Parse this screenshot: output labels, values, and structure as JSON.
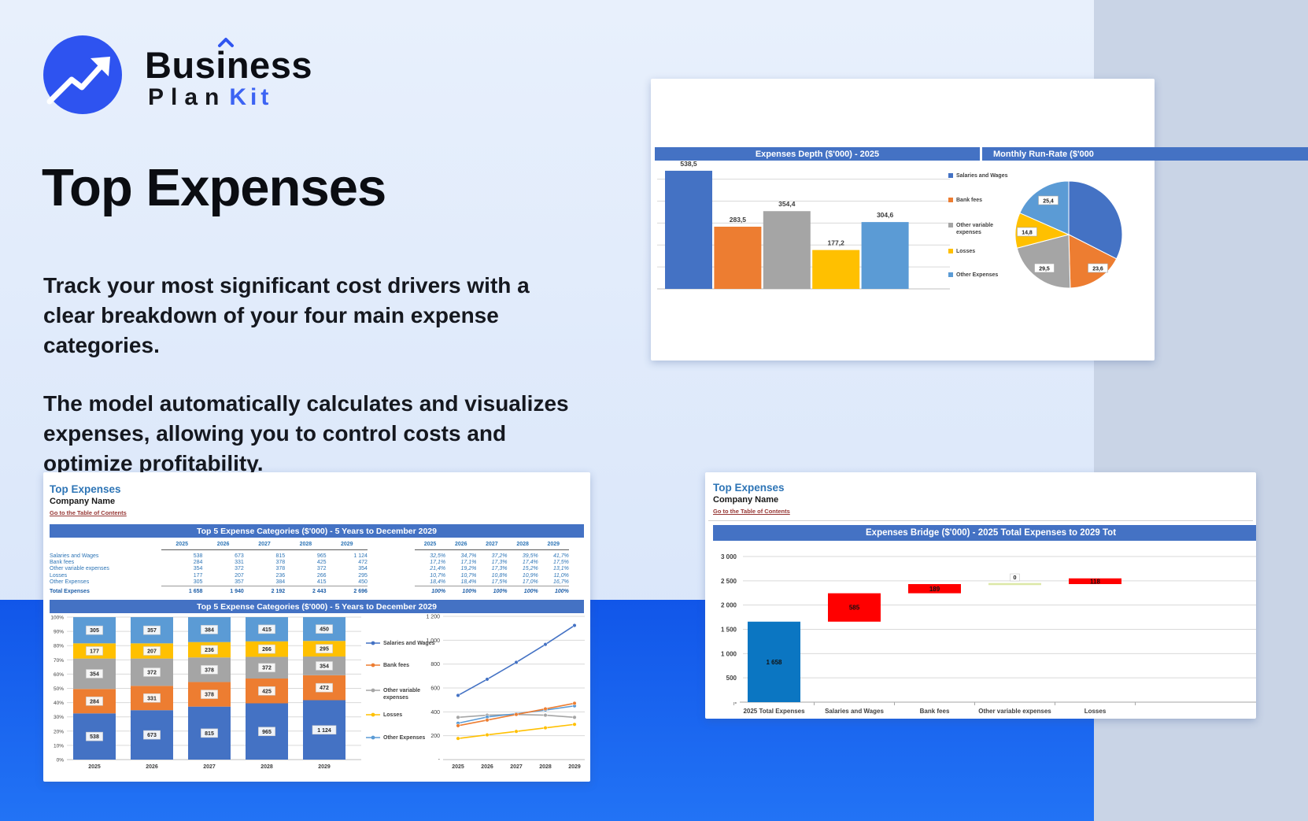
{
  "logo": {
    "word1": "Business",
    "plan": "Plan",
    "kit": "Kit"
  },
  "hero": {
    "title": "Top Expenses",
    "p1": "Track your most significant cost drivers with a clear breakdown of your four main expense categories.",
    "p2": "The model automatically calculates and visualizes expenses, allowing you to control costs and optimize profitability."
  },
  "palette": {
    "series": [
      "#4472C4",
      "#ED7D31",
      "#A5A5A5",
      "#FFC000",
      "#5B9BD5"
    ],
    "banner": "#4472C4",
    "bridge_total": "#0B76C2",
    "bridge_delta": "#FF0000",
    "bridge_zero": "#DCE8A6",
    "accent_blue": "#2F55F0",
    "link": "#963634",
    "sheet_title_blue": "#2E75B6"
  },
  "series_names": [
    "Salaries and Wages",
    "Bank fees",
    "Other variable expenses",
    "Losses",
    "Other Expenses"
  ],
  "cards": {
    "depth": {
      "banner1": "Expenses Depth ($'000) - 2025",
      "banner2": "Monthly Run-Rate ($'000"
    }
  },
  "sheet1": {
    "title": "Top Expenses",
    "company": "Company Name",
    "link": "Go to the Table of Contents",
    "banner_table": "Top 5 Expense Categories ($'000) - 5 Years to December 2029",
    "banner_chart": "Top 5 Expense Categories ($'000) - 5 Years to December 2029",
    "years": [
      "2025",
      "2026",
      "2027",
      "2028",
      "2029"
    ],
    "rows": [
      {
        "label": "Salaries and Wages",
        "values": [
          "538",
          "673",
          "815",
          "965",
          "1 124"
        ],
        "pcts": [
          "32,5%",
          "34,7%",
          "37,2%",
          "39,5%",
          "41,7%"
        ]
      },
      {
        "label": "Bank fees",
        "values": [
          "284",
          "331",
          "378",
          "425",
          "472"
        ],
        "pcts": [
          "17,1%",
          "17,1%",
          "17,3%",
          "17,4%",
          "17,5%"
        ]
      },
      {
        "label": "Other variable expenses",
        "values": [
          "354",
          "372",
          "378",
          "372",
          "354"
        ],
        "pcts": [
          "21,4%",
          "19,2%",
          "17,3%",
          "15,2%",
          "13,1%"
        ]
      },
      {
        "label": "Losses",
        "values": [
          "177",
          "207",
          "236",
          "266",
          "295"
        ],
        "pcts": [
          "10,7%",
          "10,7%",
          "10,8%",
          "10,9%",
          "11,0%"
        ]
      },
      {
        "label": "Other Expenses",
        "values": [
          "305",
          "357",
          "384",
          "415",
          "450"
        ],
        "pcts": [
          "18,4%",
          "18,4%",
          "17,5%",
          "17,0%",
          "16,7%"
        ]
      }
    ],
    "total": {
      "label": "Total Expenses",
      "values": [
        "1 658",
        "1 940",
        "2 192",
        "2 443",
        "2 696"
      ],
      "pcts": [
        "100%",
        "100%",
        "100%",
        "100%",
        "100%"
      ]
    }
  },
  "sheet2": {
    "title": "Top Expenses",
    "company": "Company Name",
    "link": "Go to the Table of Contents",
    "banner": "Expenses Bridge ($'000) - 2025 Total Expenses to 2029 Tot"
  },
  "chart_data": [
    {
      "id": "expenses_depth",
      "type": "bar",
      "title": "Expenses Depth ($'000) - 2025",
      "categories": [
        "Salaries and Wages",
        "Bank fees",
        "Other variable expenses",
        "Losses",
        "Other Expenses"
      ],
      "values": [
        538.5,
        283.5,
        354.4,
        177.2,
        304.6
      ],
      "labels": [
        "538,5",
        "283,5",
        "354,4",
        "177,2",
        "304,6"
      ],
      "ylim": [
        0,
        600
      ],
      "grid": true,
      "legend_position": "right"
    },
    {
      "id": "monthly_run_rate",
      "type": "pie",
      "title": "Monthly Run-Rate ($'000",
      "labels": [
        "Salaries and Wages",
        "Bank fees",
        "Other variable expenses",
        "Losses",
        "Other Expenses"
      ],
      "values": [
        44.9,
        23.6,
        29.5,
        14.8,
        25.4
      ],
      "shown_labels": [
        "25,4",
        "14,8",
        "29,5",
        "23,6"
      ]
    },
    {
      "id": "top5_stacked",
      "type": "bar",
      "subtype": "stacked-100",
      "title": "Top 5 Expense Categories ($'000) - 5 Years to December 2029",
      "categories": [
        "2025",
        "2026",
        "2027",
        "2028",
        "2029"
      ],
      "series": [
        {
          "name": "Salaries and Wages",
          "values": [
            538,
            673,
            815,
            965,
            1124
          ]
        },
        {
          "name": "Bank fees",
          "values": [
            284,
            331,
            378,
            425,
            472
          ]
        },
        {
          "name": "Other variable expenses",
          "values": [
            354,
            372,
            378,
            372,
            354
          ]
        },
        {
          "name": "Losses",
          "values": [
            177,
            207,
            236,
            266,
            295
          ]
        },
        {
          "name": "Other Expenses",
          "values": [
            305,
            357,
            384,
            415,
            450
          ]
        }
      ],
      "y_ticks": [
        "0%",
        "10%",
        "20%",
        "30%",
        "40%",
        "50%",
        "60%",
        "70%",
        "80%",
        "90%",
        "100%"
      ]
    },
    {
      "id": "top5_lines",
      "type": "line",
      "categories": [
        "2025",
        "2026",
        "2027",
        "2028",
        "2029"
      ],
      "series": [
        {
          "name": "Salaries and Wages",
          "values": [
            538,
            673,
            815,
            965,
            1124
          ]
        },
        {
          "name": "Bank fees",
          "values": [
            284,
            331,
            378,
            425,
            472
          ]
        },
        {
          "name": "Other variable expenses",
          "values": [
            354,
            372,
            378,
            372,
            354
          ]
        },
        {
          "name": "Losses",
          "values": [
            177,
            207,
            236,
            266,
            295
          ]
        },
        {
          "name": "Other Expenses",
          "values": [
            305,
            357,
            384,
            415,
            450
          ]
        }
      ],
      "y_ticks": [
        "1 200",
        "1 000",
        "800",
        "600",
        "400",
        "200",
        "-"
      ],
      "ylim": [
        0,
        1200
      ]
    },
    {
      "id": "expenses_bridge",
      "type": "waterfall",
      "title": "Expenses Bridge ($'000) - 2025 Total Expenses to 2029 Tot",
      "categories": [
        "2025 Total Expenses",
        "Salaries and Wages",
        "Bank fees",
        "Other variable expenses",
        "Losses"
      ],
      "values": [
        1658,
        585,
        189,
        0,
        118
      ],
      "bar_labels": [
        "1 658",
        "585",
        "189",
        "0",
        "118"
      ],
      "y_ticks": [
        "3 000",
        "2 500",
        "2 000",
        "1 500",
        "1 000",
        "500",
        "-"
      ],
      "ylim": [
        0,
        3000
      ]
    }
  ]
}
